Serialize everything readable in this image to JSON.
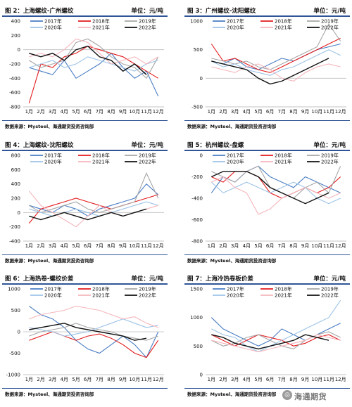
{
  "months": [
    "1月",
    "2月",
    "3月",
    "4月",
    "5月",
    "6月",
    "7月",
    "8月",
    "9月",
    "10月",
    "11月",
    "12月"
  ],
  "source": "数据来源：Mysteel、海通期货投资咨询部",
  "watermark": "海通期货",
  "series_colors": {
    "2017年": "#4a7dc4",
    "2018年": "#e31a1c",
    "2019年": "#a6a6a6",
    "2020年": "#9dc3e6",
    "2021年": "#f4b6bc",
    "2022年": "#111111"
  },
  "chart_data": [
    {
      "type": "line",
      "title": "图 2：上海螺纹-广州螺纹",
      "unit": "单位：元/吨",
      "ylim": [
        -800,
        400
      ],
      "yticks": [
        400,
        200,
        0,
        -200,
        -400,
        -600,
        -800
      ],
      "categories": [
        "1月",
        "2月",
        "3月",
        "4月",
        "5月",
        "6月",
        "7月",
        "8月",
        "9月",
        "10月",
        "11月",
        "12月"
      ],
      "series": [
        {
          "name": "2017年",
          "values": [
            -250,
            -300,
            -350,
            -150,
            -400,
            -300,
            -200,
            -50,
            -250,
            -400,
            -300,
            -650
          ]
        },
        {
          "name": "2018年",
          "values": [
            -750,
            -200,
            -250,
            -100,
            -50,
            50,
            0,
            -50,
            -100,
            -200,
            -300,
            -400
          ]
        },
        {
          "name": "2019年",
          "values": [
            -150,
            -250,
            -200,
            -150,
            100,
            150,
            50,
            -100,
            -200,
            -250,
            -400,
            -100
          ]
        },
        {
          "name": "2020年",
          "values": [
            -250,
            -200,
            -150,
            -250,
            -200,
            -100,
            -150,
            -200,
            -250,
            -300,
            -200,
            -150
          ]
        },
        {
          "name": "2021年",
          "values": [
            -100,
            -50,
            -100,
            0,
            150,
            100,
            -50,
            -200,
            -150,
            -100,
            -200,
            -100
          ]
        },
        {
          "name": "2022年",
          "values": [
            -50,
            -100,
            -50,
            -150,
            0,
            50,
            -100,
            -150,
            -300,
            -200,
            -350,
            null
          ]
        }
      ]
    },
    {
      "type": "line",
      "title": "图 3：广州螺纹-沈阳螺纹",
      "unit": "单位：元/吨",
      "ylim": [
        -500,
        1000
      ],
      "yticks": [
        1000,
        500,
        0,
        -500
      ],
      "categories": [
        "1月",
        "2月",
        "3月",
        "4月",
        "5月",
        "6月",
        "7月",
        "8月",
        "9月",
        "10月",
        "11月",
        "12月"
      ],
      "series": [
        {
          "name": "2017年",
          "values": [
            300,
            250,
            350,
            200,
            150,
            250,
            350,
            300,
            400,
            500,
            550,
            600
          ]
        },
        {
          "name": "2018年",
          "values": [
            600,
            300,
            350,
            250,
            150,
            100,
            200,
            300,
            400,
            500,
            600,
            700
          ]
        },
        {
          "name": "2019年",
          "values": [
            350,
            300,
            250,
            300,
            200,
            150,
            250,
            350,
            450,
            550,
            950,
            650
          ]
        },
        {
          "name": "2020年",
          "values": [
            300,
            200,
            250,
            150,
            100,
            50,
            150,
            200,
            300,
            400,
            500,
            400
          ]
        },
        {
          "name": "2021年",
          "values": [
            200,
            150,
            100,
            200,
            250,
            150,
            0,
            -50,
            100,
            200,
            250,
            200
          ]
        },
        {
          "name": "2022年",
          "values": [
            300,
            250,
            200,
            150,
            0,
            -100,
            -50,
            50,
            150,
            250,
            350,
            null
          ]
        }
      ]
    },
    {
      "type": "line",
      "title": "图 4：上海螺纹-沈阳螺纹",
      "unit": "单位：元/吨",
      "ylim": [
        -400,
        800
      ],
      "yticks": [
        800,
        600,
        400,
        200,
        0,
        -200,
        -400
      ],
      "categories": [
        "1月",
        "2月",
        "3月",
        "4月",
        "5月",
        "6月",
        "7月",
        "8月",
        "9月",
        "10月",
        "11月",
        "12月"
      ],
      "series": [
        {
          "name": "2017年",
          "values": [
            100,
            50,
            0,
            100,
            50,
            -50,
            50,
            100,
            150,
            200,
            400,
            250
          ]
        },
        {
          "name": "2018年",
          "values": [
            -150,
            50,
            100,
            150,
            200,
            150,
            100,
            50,
            100,
            150,
            200,
            250
          ]
        },
        {
          "name": "2019年",
          "values": [
            100,
            0,
            50,
            100,
            150,
            50,
            0,
            50,
            100,
            150,
            550,
            200
          ]
        },
        {
          "name": "2020年",
          "values": [
            50,
            0,
            -50,
            0,
            50,
            0,
            -50,
            0,
            50,
            100,
            150,
            100
          ]
        },
        {
          "name": "2021年",
          "values": [
            300,
            100,
            0,
            -100,
            -200,
            -50,
            100,
            0,
            -50,
            0,
            50,
            100
          ]
        },
        {
          "name": "2022年",
          "values": [
            -50,
            -100,
            -50,
            0,
            -50,
            -100,
            -50,
            0,
            -50,
            0,
            50,
            null
          ]
        }
      ]
    },
    {
      "type": "line",
      "title": "图 5：杭州螺纹-盘螺",
      "unit": "单位：元/吨",
      "ylim": [
        -800,
        0
      ],
      "yticks": [
        0,
        -200,
        -400,
        -600,
        -800
      ],
      "categories": [
        "1月",
        "2月",
        "3月",
        "4月",
        "5月",
        "6月",
        "7月",
        "8月",
        "9月",
        "10月",
        "11月",
        "12月"
      ],
      "series": [
        {
          "name": "2017年",
          "values": [
            -350,
            -200,
            -250,
            -150,
            -100,
            -200,
            -250,
            -300,
            -200,
            -250,
            -300,
            -350
          ]
        },
        {
          "name": "2018年",
          "values": [
            -200,
            -250,
            -150,
            -150,
            -200,
            -350,
            -400,
            -350,
            -300,
            -350,
            -300,
            -200
          ]
        },
        {
          "name": "2019年",
          "values": [
            -150,
            -200,
            -250,
            -150,
            -100,
            -300,
            -350,
            -400,
            -300,
            -250,
            -350,
            -100
          ]
        },
        {
          "name": "2020年",
          "values": [
            -250,
            -350,
            -300,
            -250,
            -300,
            -350,
            -300,
            -250,
            -300,
            -400,
            -450,
            -400
          ]
        },
        {
          "name": "2021年",
          "values": [
            -250,
            -200,
            -300,
            -350,
            -550,
            -500,
            -400,
            -350,
            -300,
            -350,
            -400,
            -350
          ]
        },
        {
          "name": "2022年",
          "values": [
            -200,
            -150,
            -150,
            -150,
            -200,
            -300,
            -350,
            -400,
            -450,
            -400,
            -350,
            null
          ]
        }
      ]
    },
    {
      "type": "line",
      "title": "图 6：上海热卷-螺纹价差",
      "unit": "单位：元/吨",
      "ylim": [
        -1000,
        1000
      ],
      "yticks": [
        1000,
        500,
        0,
        -500,
        -1000
      ],
      "categories": [
        "1月",
        "2月",
        "3月",
        "4月",
        "5月",
        "6月",
        "7月",
        "8月",
        "9月",
        "10月",
        "11月",
        "12月"
      ],
      "series": [
        {
          "name": "2017年",
          "values": [
            600,
            400,
            300,
            100,
            -200,
            -400,
            -500,
            -300,
            -100,
            -300,
            -600,
            0
          ]
        },
        {
          "name": "2018年",
          "values": [
            -200,
            -100,
            0,
            -100,
            -200,
            -100,
            -50,
            -150,
            -300,
            -500,
            -600,
            -200
          ]
        },
        {
          "name": "2019年",
          "values": [
            -100,
            0,
            50,
            100,
            200,
            100,
            50,
            0,
            -100,
            -150,
            -200,
            -100
          ]
        },
        {
          "name": "2020年",
          "values": [
            100,
            50,
            0,
            -100,
            -50,
            0,
            100,
            200,
            300,
            200,
            100,
            150
          ]
        },
        {
          "name": "2021年",
          "values": [
            300,
            400,
            450,
            500,
            600,
            550,
            500,
            400,
            300,
            350,
            200,
            100
          ]
        },
        {
          "name": "2022年",
          "values": [
            50,
            100,
            150,
            200,
            100,
            50,
            0,
            -50,
            -100,
            -200,
            -150,
            null
          ]
        }
      ]
    },
    {
      "type": "line",
      "title": "图 7：上海冷热卷板价差",
      "unit": "单位：元/吨",
      "ylim": [
        0,
        1500
      ],
      "yticks": [
        1500,
        1000,
        500,
        0
      ],
      "categories": [
        "1月",
        "2月",
        "3月",
        "4月",
        "5月",
        "6月",
        "7月",
        "8月",
        "9月",
        "10月",
        "11月",
        "12月"
      ],
      "series": [
        {
          "name": "2017年",
          "values": [
            1000,
            800,
            700,
            600,
            500,
            600,
            800,
            700,
            600,
            700,
            800,
            900
          ]
        },
        {
          "name": "2018年",
          "values": [
            700,
            600,
            500,
            600,
            700,
            650,
            600,
            500,
            550,
            650,
            700,
            600
          ]
        },
        {
          "name": "2019年",
          "values": [
            600,
            500,
            550,
            650,
            700,
            600,
            500,
            450,
            600,
            700,
            750,
            650
          ]
        },
        {
          "name": "2020年",
          "values": [
            800,
            700,
            650,
            500,
            400,
            500,
            600,
            700,
            800,
            900,
            1000,
            1300
          ]
        },
        {
          "name": "2021年",
          "values": [
            600,
            550,
            500,
            450,
            400,
            450,
            500,
            550,
            600,
            700,
            650,
            600
          ]
        },
        {
          "name": "2022年",
          "values": [
            700,
            650,
            550,
            500,
            450,
            500,
            550,
            600,
            700,
            650,
            600,
            null
          ]
        }
      ]
    }
  ]
}
